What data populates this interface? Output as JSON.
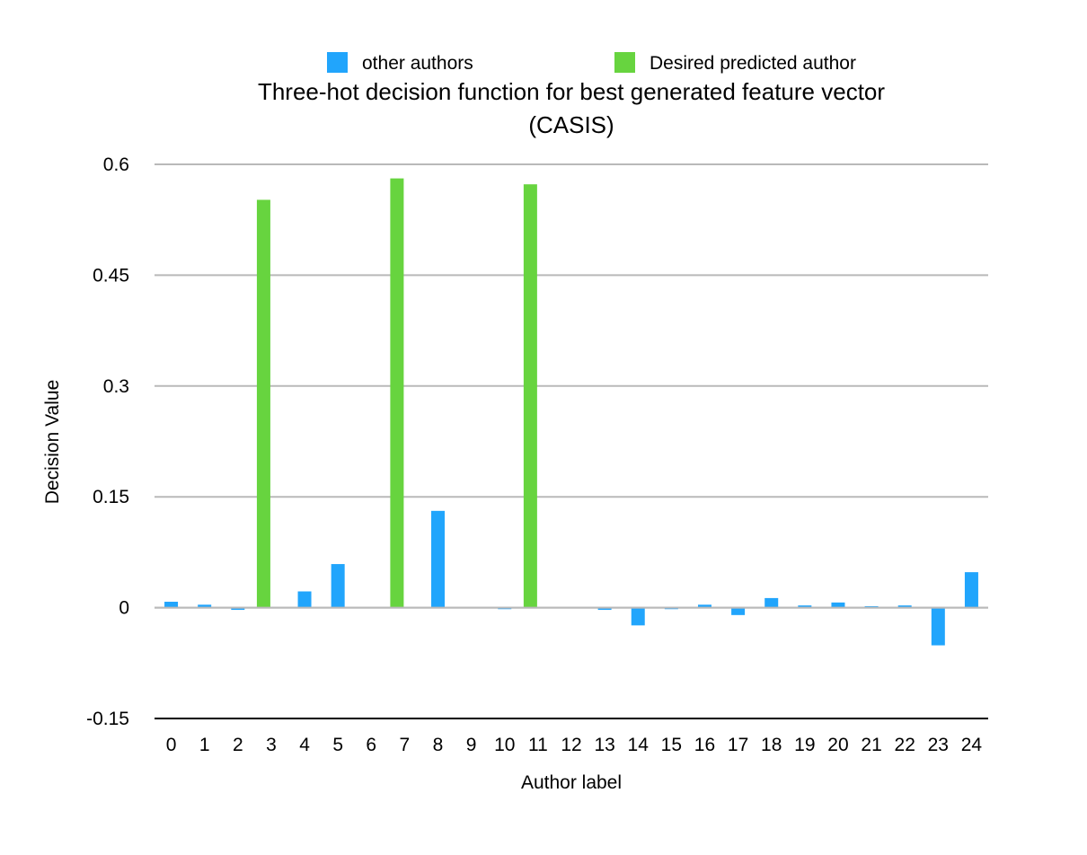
{
  "chart_data": {
    "type": "bar",
    "title_line1": "Three-hot decision function for best generated feature vector",
    "title_line2": "(CASIS)",
    "xlabel": "Author label",
    "ylabel": "Decision Value",
    "ylim": [
      -0.15,
      0.6
    ],
    "yticks": [
      "0.6",
      "0.45",
      "0.3",
      "0.15",
      "0",
      "-0.15"
    ],
    "ytick_values": [
      0.6,
      0.45,
      0.3,
      0.15,
      0,
      -0.15
    ],
    "grid": true,
    "legend_position": "top",
    "categories": [
      "0",
      "1",
      "2",
      "3",
      "4",
      "5",
      "6",
      "7",
      "8",
      "9",
      "10",
      "11",
      "12",
      "13",
      "14",
      "15",
      "16",
      "17",
      "18",
      "19",
      "20",
      "21",
      "22",
      "23",
      "24"
    ],
    "series": [
      {
        "name": "other authors",
        "color": "#21a5fc",
        "values": [
          0.008,
          0.004,
          -0.003,
          null,
          0.022,
          0.059,
          null,
          null,
          0.131,
          null,
          -0.002,
          null,
          null,
          -0.003,
          -0.024,
          -0.002,
          0.004,
          -0.01,
          0.013,
          0.003,
          0.007,
          0.002,
          0.003,
          -0.051,
          0.048
        ]
      },
      {
        "name": "Desired predicted author",
        "color": "#67d43f",
        "values": [
          null,
          null,
          null,
          0.552,
          null,
          null,
          null,
          0.581,
          null,
          null,
          null,
          0.573,
          null,
          null,
          null,
          null,
          null,
          null,
          null,
          null,
          null,
          null,
          null,
          null,
          null
        ]
      }
    ]
  }
}
